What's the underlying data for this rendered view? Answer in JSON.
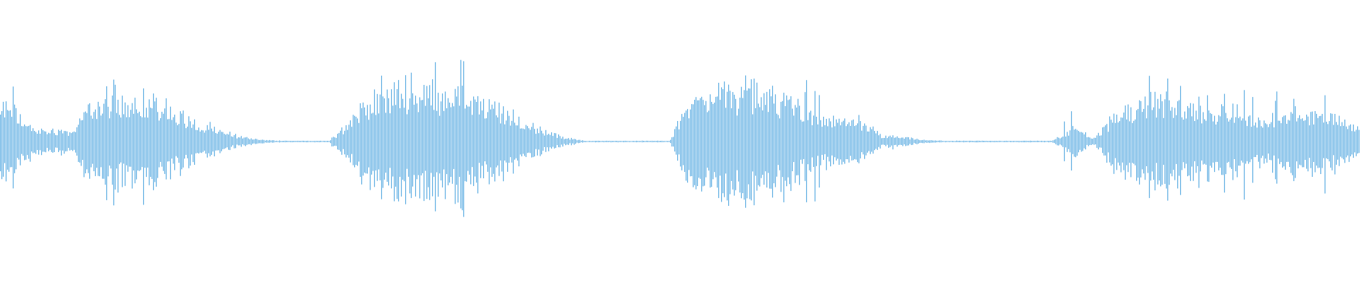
{
  "chart_data": {
    "type": "waveform",
    "title": "",
    "xlabel": "",
    "ylabel": "",
    "ylim": [
      -1,
      1
    ],
    "grid": false,
    "legend": "none",
    "color": "#5dade2",
    "background": "#ffffff",
    "envelope_typical": [
      0.25,
      0.08,
      0.08,
      0.08,
      0.3,
      0.25,
      0.3,
      0.28,
      0.2,
      0.1,
      0.06,
      0.03,
      0.01,
      0.005,
      0.005,
      0.005,
      0.15,
      0.3,
      0.35,
      0.38,
      0.38,
      0.35,
      0.3,
      0.22,
      0.14,
      0.08,
      0.03,
      0.005,
      0.005,
      0.005,
      0.005,
      0.005,
      0.3,
      0.35,
      0.38,
      0.38,
      0.3,
      0.28,
      0.15,
      0.15,
      0.12,
      0.04,
      0.03,
      0.01,
      0.005,
      0.005,
      0.005,
      0.005,
      0.005,
      0.005,
      0.1,
      0.02,
      0.2,
      0.25,
      0.3,
      0.28,
      0.22,
      0.22,
      0.2,
      0.15,
      0.2,
      0.2,
      0.2,
      0.12
    ],
    "envelope_peak": [
      0.55,
      0.12,
      0.12,
      0.12,
      0.45,
      0.45,
      0.42,
      0.42,
      0.3,
      0.15,
      0.08,
      0.04,
      0.01,
      0.005,
      0.005,
      0.005,
      0.35,
      0.4,
      0.45,
      0.5,
      0.55,
      0.6,
      0.45,
      0.3,
      0.18,
      0.1,
      0.04,
      0.005,
      0.005,
      0.005,
      0.005,
      0.005,
      0.45,
      0.55,
      0.6,
      0.55,
      0.65,
      0.4,
      0.45,
      0.25,
      0.2,
      0.08,
      0.04,
      0.01,
      0.005,
      0.005,
      0.005,
      0.005,
      0.005,
      0.005,
      0.25,
      0.04,
      0.3,
      0.4,
      0.5,
      0.45,
      0.35,
      0.4,
      0.45,
      0.45,
      0.35,
      0.4,
      0.35,
      0.2
    ]
  }
}
